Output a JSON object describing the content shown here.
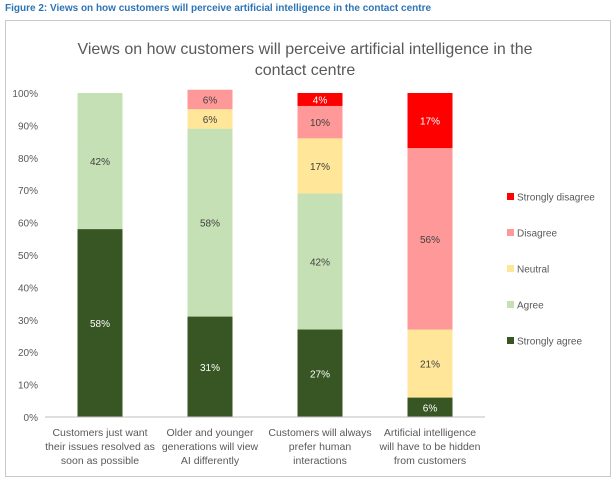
{
  "figure_caption": "Figure 2: Views on how customers will perceive artificial intelligence in the contact centre",
  "chart_data": {
    "type": "bar",
    "stacked": true,
    "percent": true,
    "title": "Views on how customers will perceive artificial intelligence in the contact centre",
    "title_lines": [
      "Views on how customers will perceive artificial intelligence in the",
      "contact centre"
    ],
    "ylim": [
      0,
      100
    ],
    "yticks": [
      "0%",
      "10%",
      "20%",
      "30%",
      "40%",
      "50%",
      "60%",
      "70%",
      "80%",
      "90%",
      "100%"
    ],
    "grid": false,
    "legend_position": "right",
    "categories": [
      [
        "Customers just want",
        "their issues resolved as",
        "soon as possible"
      ],
      [
        "Older and younger",
        "generations will view",
        "AI differently"
      ],
      [
        "Customers will always",
        "prefer human",
        "interactions"
      ],
      [
        "Artificial intelligence",
        "will have to be hidden",
        "from customers"
      ]
    ],
    "series": [
      {
        "name": "Strongly agree",
        "color": "#375623",
        "label_color": "#ffffff",
        "values": [
          58,
          31,
          27,
          6
        ],
        "labels": [
          "58%",
          "31%",
          "27%",
          "6%"
        ]
      },
      {
        "name": "Agree",
        "color": "#c5e0b4",
        "label_color": "#404040",
        "values": [
          42,
          58,
          42,
          0
        ],
        "labels": [
          "42%",
          "58%",
          "42%",
          ""
        ]
      },
      {
        "name": "Neutral",
        "color": "#ffe699",
        "label_color": "#404040",
        "values": [
          0,
          6,
          17,
          21
        ],
        "labels": [
          "",
          "6%",
          "17%",
          "21%"
        ]
      },
      {
        "name": "Disagree",
        "color": "#ff9999",
        "label_color": "#404040",
        "values": [
          0,
          6,
          10,
          56
        ],
        "labels": [
          "",
          "6%",
          "10%",
          "56%"
        ]
      },
      {
        "name": "Strongly disagree",
        "color": "#ff0000",
        "label_color": "#ffffff",
        "values": [
          0,
          0,
          4,
          17
        ],
        "labels": [
          "",
          "",
          "4%",
          "17%"
        ]
      }
    ]
  }
}
